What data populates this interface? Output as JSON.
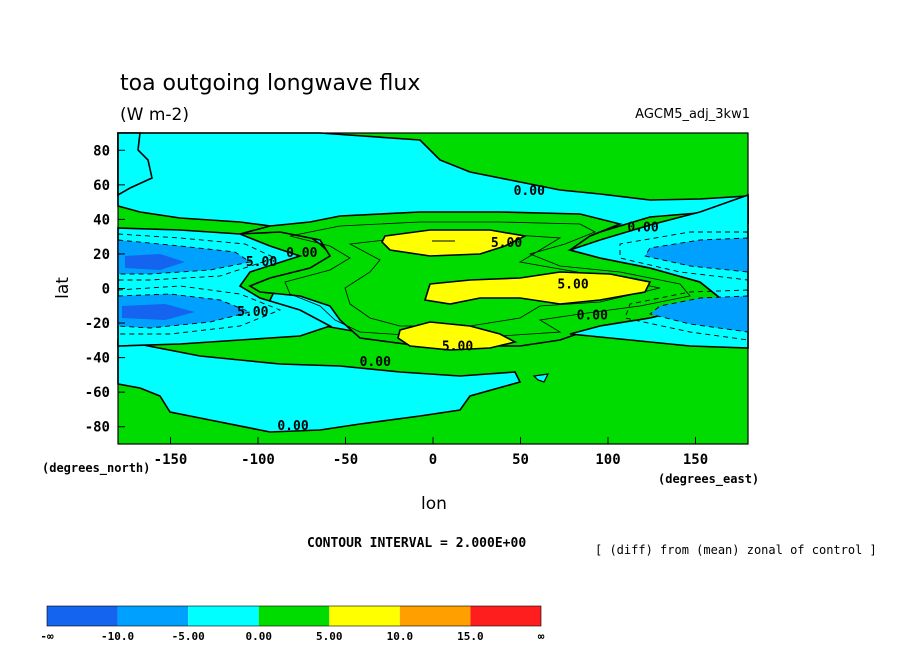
{
  "chart_data": {
    "type": "heatmap",
    "title": "toa outgoing longwave flux",
    "units": "(W m-2)",
    "run_label": "AGCM5_adj_3kw1",
    "xlabel": "lon",
    "ylabel": "lat",
    "x_units": "(degrees_east)",
    "y_units": "(degrees_north)",
    "xlim": [
      -180,
      180
    ],
    "ylim": [
      -90,
      90
    ],
    "x_ticks": [
      -150,
      -100,
      -50,
      0,
      50,
      100,
      150
    ],
    "y_ticks": [
      80,
      60,
      40,
      20,
      0,
      -20,
      -40,
      -60,
      -80
    ],
    "contour_interval_text": "CONTOUR INTERVAL = 2.000E+00",
    "note": "[ (diff) from (mean) zonal of control ]",
    "contour_labels": [
      {
        "text": "0.00",
        "lon": 55,
        "lat": 57
      },
      {
        "text": "0.00",
        "lon": 120,
        "lat": 36
      },
      {
        "text": "0.00",
        "lon": -75,
        "lat": 21
      },
      {
        "text": "5.00",
        "lon": 42,
        "lat": 27
      },
      {
        "text": "5.00",
        "lon": -98,
        "lat": 16
      },
      {
        "text": "5.00",
        "lon": 80,
        "lat": 3
      },
      {
        "text": "0.00",
        "lon": 91,
        "lat": -15
      },
      {
        "text": "5.00",
        "lon": -103,
        "lat": -13
      },
      {
        "text": "5.00",
        "lon": 14,
        "lat": -33
      },
      {
        "text": "0.00",
        "lon": -33,
        "lat": -42
      },
      {
        "text": "0.00",
        "lon": -80,
        "lat": -79
      }
    ],
    "colorbar": {
      "colors": [
        "#1464f0",
        "#00a0ff",
        "#00ffff",
        "#00dc00",
        "#ffff00",
        "#ffa000",
        "#ff1e1e"
      ],
      "labels": [
        "-∞",
        "-10.0",
        "-5.00",
        "0.00",
        "5.00",
        "10.0",
        "15.0",
        "∞"
      ]
    }
  }
}
